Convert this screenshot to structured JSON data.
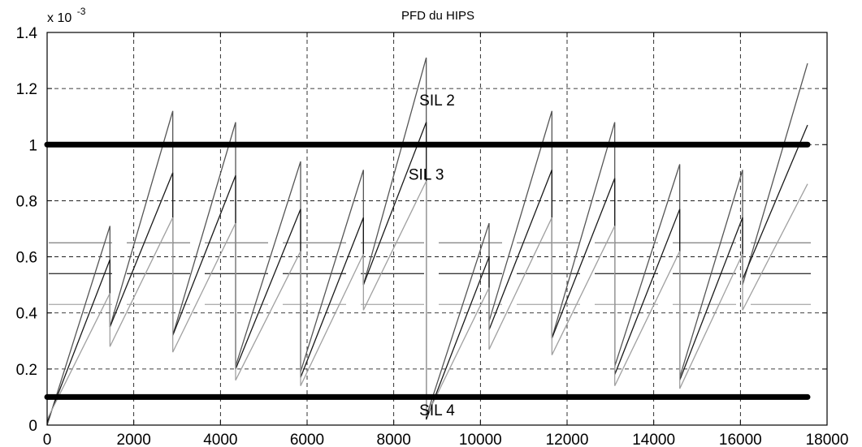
{
  "chart_data": {
    "type": "line",
    "title": "PFD du HIPS",
    "y_multiplier_label": "x 10",
    "y_multiplier_exponent": "-3",
    "xlabel": "",
    "ylabel": "",
    "xlim": [
      0,
      18000
    ],
    "ylim": [
      0,
      1.4
    ],
    "x_ticks": [
      0,
      2000,
      4000,
      6000,
      8000,
      10000,
      12000,
      14000,
      16000,
      18000
    ],
    "x_tick_labels": [
      "0",
      "2000",
      "4000",
      "6000",
      "8000",
      "10000",
      "12000",
      "14000",
      "16000",
      "18000"
    ],
    "y_ticks": [
      0,
      0.2,
      0.4,
      0.6,
      0.8,
      1,
      1.2,
      1.4
    ],
    "y_tick_labels": [
      "0",
      "0.2",
      "0.4",
      "0.6",
      "0.8",
      "1",
      "1.2",
      "1.4"
    ],
    "grid": true,
    "annotations": [
      {
        "text": "SIL 2",
        "x": 9000,
        "y": 1.16
      },
      {
        "text": "SIL 3",
        "x": 8750,
        "y": 0.895
      },
      {
        "text": "SIL 4",
        "x": 9000,
        "y": 0.055
      }
    ],
    "thresholds": [
      {
        "y": 1.0,
        "x_range": [
          0,
          17550
        ],
        "color": "#000000",
        "style": "thick"
      },
      {
        "y": 0.1,
        "x_range": [
          0,
          17550
        ],
        "color": "#000000",
        "style": "thick"
      }
    ],
    "reference_lines": [
      {
        "y": 0.65,
        "color": "#8a8a8a",
        "style": "dashed"
      },
      {
        "y": 0.54,
        "color": "#3a3a3a",
        "style": "dashed"
      },
      {
        "y": 0.43,
        "color": "#b0b0b0",
        "style": "dashed"
      }
    ],
    "series": [
      {
        "color": "#555555",
        "x": [
          0,
          1450,
          1450,
          2900,
          2900,
          4350,
          4350,
          5850,
          5850,
          7300,
          7300,
          8750,
          8750,
          10200,
          10200,
          11650,
          11650,
          13100,
          13100,
          14600,
          14600,
          16050,
          16050,
          17550
        ],
        "y": [
          0,
          0.71,
          0.35,
          1.12,
          0.32,
          1.08,
          0.21,
          0.94,
          0.19,
          0.91,
          0.5,
          1.31,
          0.03,
          0.72,
          0.37,
          1.12,
          0.31,
          1.08,
          0.21,
          0.93,
          0.17,
          0.91,
          0.5,
          1.29
        ]
      },
      {
        "color": "#1a1a1a",
        "x": [
          0,
          1450,
          1450,
          2900,
          2900,
          4350,
          4350,
          5850,
          5850,
          7300,
          7300,
          8750,
          8750,
          10200,
          10200,
          11650,
          11650,
          13100,
          13100,
          14600,
          14600,
          16050,
          16050,
          17550
        ],
        "y": [
          0.01,
          0.59,
          0.35,
          0.9,
          0.32,
          0.89,
          0.2,
          0.77,
          0.17,
          0.74,
          0.5,
          1.08,
          0.02,
          0.6,
          0.34,
          0.91,
          0.31,
          0.88,
          0.18,
          0.77,
          0.16,
          0.74,
          0.52,
          1.07
        ]
      },
      {
        "color": "#a0a0a0",
        "x": [
          0,
          1450,
          1450,
          2900,
          2900,
          4350,
          4350,
          5850,
          5850,
          7300,
          7300,
          8750,
          8750,
          10200,
          10200,
          11650,
          11650,
          13100,
          13100,
          14600,
          14600,
          16050,
          16050,
          17550
        ],
        "y": [
          0.02,
          0.47,
          0.28,
          0.74,
          0.26,
          0.72,
          0.16,
          0.62,
          0.14,
          0.61,
          0.41,
          0.87,
          0.03,
          0.49,
          0.27,
          0.74,
          0.25,
          0.71,
          0.14,
          0.62,
          0.13,
          0.61,
          0.41,
          0.86
        ]
      }
    ]
  }
}
